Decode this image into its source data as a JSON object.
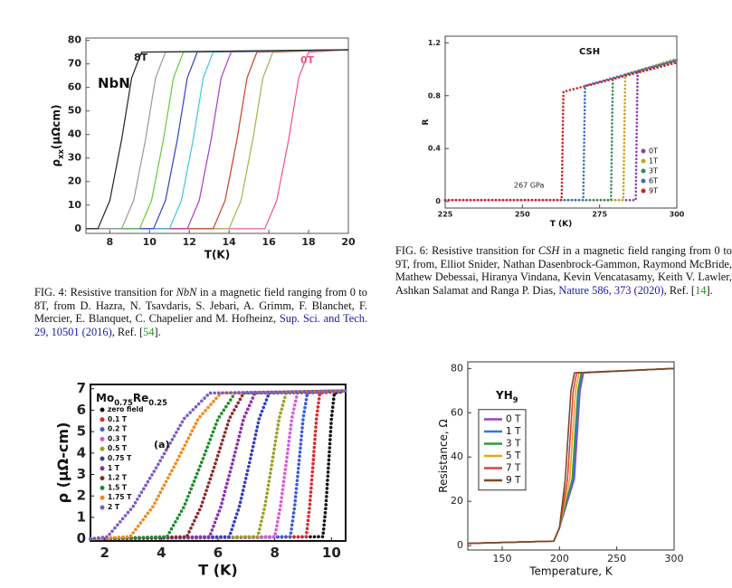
{
  "chart_data": [
    {
      "type": "line",
      "title": {
        "parts": [
          "NbN"
        ]
      },
      "xlabel": "T(K)",
      "ylabel": {
        "parts": [
          "ρ",
          "xx",
          "(μΩcm)"
        ]
      },
      "annotations": [
        {
          "text": "8T",
          "color": "#222222"
        },
        {
          "text": "0T",
          "color": "#f2508a"
        }
      ],
      "xlim": [
        6.8,
        20
      ],
      "xticks": [
        8,
        10,
        12,
        14,
        16,
        18,
        20
      ],
      "ylim": [
        -2,
        81
      ],
      "yticks": [
        0,
        10,
        20,
        30,
        40,
        50,
        60,
        70,
        80
      ],
      "line_style": "solid",
      "series": [
        {
          "color": "#f2508a",
          "x": [
            6.8,
            15.8,
            16.4,
            17.0,
            17.5,
            18.0,
            20
          ],
          "values": [
            0,
            0,
            12,
            38,
            64,
            75,
            76
          ]
        },
        {
          "color": "#a8b04a",
          "x": [
            6.8,
            14.0,
            14.6,
            15.2,
            15.7,
            16.2,
            20
          ],
          "values": [
            0,
            0,
            12,
            38,
            64,
            75,
            76
          ]
        },
        {
          "color": "#c8402a",
          "x": [
            6.8,
            13.2,
            13.8,
            14.4,
            14.9,
            15.4,
            20
          ],
          "values": [
            0,
            0,
            12,
            38,
            64,
            75,
            76
          ]
        },
        {
          "color": "#a83cc8",
          "x": [
            6.8,
            11.9,
            12.5,
            13.1,
            13.6,
            14.1,
            20
          ],
          "values": [
            0,
            0,
            12,
            38,
            64,
            75,
            76
          ]
        },
        {
          "color": "#3cc8d8",
          "x": [
            6.8,
            11.0,
            11.6,
            12.2,
            12.7,
            13.2,
            20
          ],
          "values": [
            0,
            0,
            12,
            38,
            64,
            75,
            76
          ]
        },
        {
          "color": "#3340c8",
          "x": [
            6.8,
            10.2,
            10.8,
            11.4,
            11.9,
            12.4,
            20
          ],
          "values": [
            0,
            0,
            12,
            38,
            64,
            75,
            76
          ]
        },
        {
          "color": "#66c83a",
          "x": [
            6.8,
            9.5,
            10.1,
            10.7,
            11.2,
            11.7,
            20
          ],
          "values": [
            0,
            0,
            12,
            38,
            64,
            75,
            76
          ]
        },
        {
          "color": "#999999",
          "x": [
            6.8,
            8.6,
            9.2,
            9.8,
            10.3,
            10.8,
            20
          ],
          "values": [
            0,
            0,
            12,
            38,
            64,
            75,
            76
          ]
        },
        {
          "color": "#222222",
          "x": [
            6.8,
            7.4,
            8.0,
            8.6,
            9.1,
            9.6,
            20
          ],
          "values": [
            0,
            0,
            12,
            38,
            64,
            75,
            76
          ]
        }
      ]
    },
    {
      "type": "line",
      "title": {
        "parts": [
          "CSH"
        ]
      },
      "xlabel": "T (K)",
      "ylabel": {
        "parts": [
          "R"
        ]
      },
      "annotations": [
        {
          "text": "267 GPa",
          "color": "#222222"
        }
      ],
      "xlim": [
        225,
        300
      ],
      "xticks": [
        225,
        250,
        275,
        300
      ],
      "ylim": [
        -0.05,
        1.25
      ],
      "yticks": [
        0,
        0.4,
        0.8,
        1.2
      ],
      "line_style": "dotted",
      "legend": "lower right",
      "series": [
        {
          "name": "0T",
          "color": "#8b3fa8",
          "x": [
            225,
            286.7,
            287,
            287.3,
            300
          ],
          "values": [
            0.01,
            0.01,
            0.5,
            0.985,
            1.07
          ]
        },
        {
          "name": "1T",
          "color": "#c9a227",
          "x": [
            225,
            282.7,
            283,
            283.3,
            300
          ],
          "values": [
            0.01,
            0.01,
            0.5,
            0.96,
            1.08
          ]
        },
        {
          "name": "3T",
          "color": "#2e8b57",
          "x": [
            225,
            278.7,
            279,
            279.3,
            300
          ],
          "values": [
            0.01,
            0.01,
            0.5,
            0.93,
            1.06
          ]
        },
        {
          "name": "6T",
          "color": "#3a6fc4",
          "x": [
            225,
            269.7,
            270,
            270.3,
            300
          ],
          "values": [
            0.01,
            0.01,
            0.45,
            0.875,
            1.07
          ]
        },
        {
          "name": "9T",
          "color": "#d42020",
          "x": [
            225,
            262.7,
            263,
            263.3,
            300
          ],
          "values": [
            0.01,
            0.01,
            0.42,
            0.83,
            1.05
          ]
        }
      ]
    },
    {
      "type": "line",
      "title": {
        "parts": [
          "Mo",
          "0.75",
          "Re",
          "0.25"
        ]
      },
      "xlabel": "T (K)",
      "ylabel": {
        "parts": [
          "ρ (μΩ-cm)"
        ]
      },
      "annotations": [
        {
          "text": "(a)",
          "color": "#111111"
        }
      ],
      "xlim": [
        1.5,
        10.5
      ],
      "xticks": [
        2,
        4,
        6,
        8,
        10
      ],
      "ylim": [
        -0.1,
        7.2
      ],
      "yticks": [
        0,
        1,
        2,
        3,
        4,
        5,
        6,
        7
      ],
      "line_style": "dotted",
      "legend": "upper left",
      "series": [
        {
          "name": "zero field",
          "color": "#111111",
          "x": [
            1.5,
            9.7,
            9.8,
            9.9,
            10.0,
            10.1,
            10.5
          ],
          "values": [
            0,
            0.1,
            1.5,
            3.5,
            5.6,
            6.8,
            6.9
          ]
        },
        {
          "name": "0.1 T",
          "color": "#e0282c",
          "x": [
            1.5,
            9.11,
            9.23,
            9.35,
            9.47,
            9.59,
            10.5
          ],
          "values": [
            0,
            0.1,
            1.5,
            3.5,
            5.6,
            6.8,
            6.9
          ]
        },
        {
          "name": "0.2 T",
          "color": "#3b5bdb",
          "x": [
            1.5,
            8.55,
            8.7,
            8.85,
            9.0,
            9.15,
            10.5
          ],
          "values": [
            0,
            0.1,
            1.5,
            3.5,
            5.6,
            6.8,
            6.9
          ]
        },
        {
          "name": "0.3 T",
          "color": "#d45cd4",
          "x": [
            1.5,
            8.0,
            8.2,
            8.4,
            8.6,
            8.8,
            10.5
          ],
          "values": [
            0,
            0.1,
            1.5,
            3.5,
            5.6,
            6.8,
            6.9
          ]
        },
        {
          "name": "0.5 T",
          "color": "#9aa02a",
          "x": [
            1.5,
            7.4,
            7.65,
            7.9,
            8.15,
            8.4,
            10.5
          ],
          "values": [
            0,
            0.1,
            1.5,
            3.5,
            5.6,
            6.8,
            6.9
          ]
        },
        {
          "name": "0.75 T",
          "color": "#3040c0",
          "x": [
            1.5,
            6.4,
            6.75,
            7.1,
            7.45,
            7.8,
            10.5
          ],
          "values": [
            0,
            0.1,
            1.5,
            3.5,
            5.6,
            6.8,
            6.9
          ]
        },
        {
          "name": "1 T",
          "color": "#8a2fb0",
          "x": [
            1.5,
            5.7,
            6.1,
            6.5,
            6.9,
            7.3,
            10.5
          ],
          "values": [
            0,
            0.1,
            1.5,
            3.5,
            5.6,
            6.8,
            6.9
          ]
        },
        {
          "name": "1.2 T",
          "color": "#8b2a2a",
          "x": [
            1.5,
            4.9,
            5.4,
            5.9,
            6.4,
            6.9,
            10.5
          ],
          "values": [
            0,
            0.1,
            1.5,
            3.5,
            5.6,
            6.8,
            6.9
          ]
        },
        {
          "name": "1.5 T",
          "color": "#1f8a2a",
          "x": [
            1.5,
            4.2,
            4.8,
            5.4,
            6.0,
            6.6,
            10.5
          ],
          "values": [
            0,
            0.1,
            1.5,
            3.5,
            5.6,
            6.8,
            6.9
          ]
        },
        {
          "name": "1.75 T",
          "color": "#f08a1a",
          "x": [
            1.5,
            2.9,
            3.7,
            4.5,
            5.3,
            6.1,
            10.5
          ],
          "values": [
            0,
            0.1,
            1.5,
            3.5,
            5.6,
            6.8,
            6.9
          ]
        },
        {
          "name": "2 T",
          "color": "#7a5cc8",
          "x": [
            1.5,
            2.1,
            3.0,
            3.9,
            4.8,
            5.7,
            10.5
          ],
          "values": [
            0,
            0.1,
            1.5,
            3.5,
            5.6,
            6.8,
            6.9
          ]
        }
      ]
    },
    {
      "type": "line",
      "title": {
        "parts": [
          "YH",
          "9"
        ]
      },
      "xlabel": "Temperature, K",
      "ylabel": {
        "parts": [
          "Resistance, Ω"
        ]
      },
      "xlim": [
        120,
        300
      ],
      "xticks": [
        150,
        200,
        250,
        300
      ],
      "ylim": [
        -2,
        83
      ],
      "yticks": [
        0,
        20,
        40,
        60,
        80
      ],
      "line_style": "solid",
      "legend": "center left",
      "series": [
        {
          "name": "0 T",
          "color": "#9b3fc9",
          "x": [
            120,
            195,
            200,
            213,
            218,
            221,
            300
          ],
          "values": [
            1,
            2,
            8,
            30,
            70,
            78,
            80
          ]
        },
        {
          "name": "1 T",
          "color": "#3a73d8",
          "x": [
            120,
            195,
            200,
            212,
            217,
            220,
            300
          ],
          "values": [
            1,
            2,
            8,
            30,
            70,
            78,
            80
          ]
        },
        {
          "name": "3 T",
          "color": "#2f9a3a",
          "x": [
            120,
            195,
            200,
            211,
            216,
            219,
            300
          ],
          "values": [
            1,
            2,
            8,
            30,
            70,
            78,
            80
          ]
        },
        {
          "name": "5 T",
          "color": "#f0a020",
          "x": [
            120,
            195,
            200,
            209,
            214,
            217,
            300
          ],
          "values": [
            1,
            2,
            8,
            30,
            70,
            78,
            80
          ]
        },
        {
          "name": "7 T",
          "color": "#e04040",
          "x": [
            120,
            195,
            200,
            207,
            212,
            215,
            300
          ],
          "values": [
            1,
            2,
            8,
            30,
            70,
            78,
            80
          ]
        },
        {
          "name": "9 T",
          "color": "#7a4a2a",
          "x": [
            120,
            195,
            200,
            205,
            210,
            213,
            300
          ],
          "values": [
            1,
            2,
            8,
            30,
            70,
            78,
            80
          ]
        }
      ]
    }
  ],
  "captions": [
    {
      "segments": [
        "FIG. 4: Resistive transition for ",
        "NbN",
        " in a magnetic field ranging from 0 to 8T, from D. Hazra, N. Tsavdaris, S. Jebari, A. Grimm, F. Blanchet, F. Mercier, E. Blanquet, C. Chapelier and M. Hofheinz, ",
        "Sup. Sci. and Tech. 29, 10501 (2016)",
        ", Ref. [",
        "54",
        "]."
      ]
    },
    {
      "segments": [
        "FIG. 6: Resistive transition for ",
        "CSH",
        " in a magnetic field ranging from 0 to 9T, from, Elliot Snider, Nathan Dasenbrock-Gammon, Raymond McBride, Mathew Debessai, Hiranya Vindana, Kevin Vencatasamy, Keith V. Lawler, Ashkan Salamat and Ranga P. Dias, ",
        "Nature 586, 373 (2020)",
        ", Ref. [",
        "14",
        "]."
      ]
    }
  ]
}
